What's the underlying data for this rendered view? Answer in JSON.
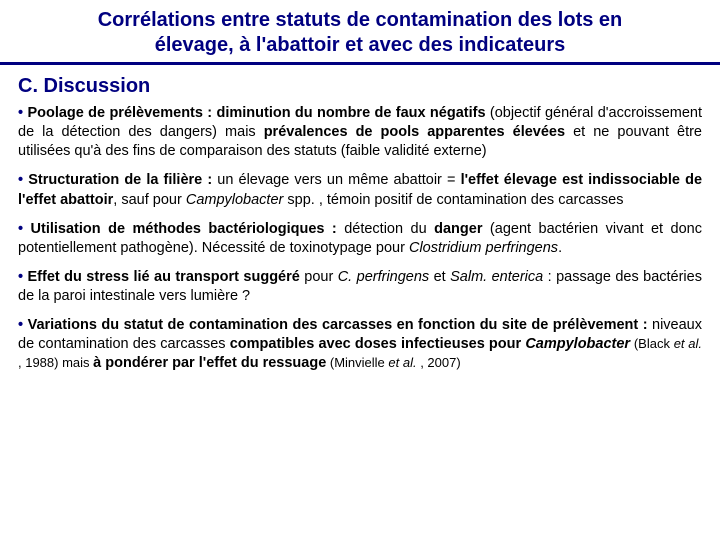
{
  "colors": {
    "primary": "#000080",
    "text": "#000000",
    "background": "#ffffff",
    "title_underline": "#000080"
  },
  "typography": {
    "title_fontsize": 20,
    "heading_fontsize": 20,
    "body_fontsize": 14.5,
    "font_family": "Arial"
  },
  "title": {
    "line1": "Corrélations entre statuts de contamination des lots en",
    "line2": "élevage, à l'abattoir et avec des indicateurs"
  },
  "section": "C. Discussion",
  "bullets": [
    {
      "lead": "Poolage de prélèvements :",
      "b1": " diminution du nombre de faux négatifs",
      "plain1": " (objectif général d'accroissement de la détection des dangers) mais ",
      "b2": "prévalences de pools apparentes élevées",
      "plain2": " et ne pouvant être utilisées qu'à des fins de comparaison des statuts (faible validité externe)"
    },
    {
      "lead": "Structuration de la filière :",
      "plain1": " un élevage vers un même abattoir = ",
      "b1": "l'effet élevage est indissociable de l'effet abattoir",
      "plain2": ", sauf pour ",
      "i1": "Campylobacter",
      "plain3": " spp. , témoin positif de contamination des carcasses"
    },
    {
      "lead": "Utilisation de méthodes bactériologiques :",
      "plain1": " détection du ",
      "b1": "danger",
      "plain2": " (agent bactérien vivant et donc potentiellement pathogène). Nécessité de toxinotypage pour ",
      "i1": "Clostridium perfringens",
      "plain3": "."
    },
    {
      "lead": "Effet du stress lié au transport suggéré",
      "plain1": " pour ",
      "i1": "C. perfringens",
      "plain2": " et ",
      "i2": "Salm. enterica",
      "plain3": " : passage des bactéries de la paroi intestinale vers lumière ?"
    },
    {
      "lead": "Variations du statut de contamination des carcasses en fonction du site de prélèvement :",
      "plain1": " niveaux de contamination des carcasses ",
      "b1": "compatibles avec doses infectieuses pour ",
      "bi1": "Campylobacter",
      "plain2": " (Black ",
      "i1": "et al.",
      "plain3": " , 1988) mais ",
      "b2": "à pondérer par l'effet du ressuage",
      "plain4": " (Minvielle ",
      "i2": "et al.",
      "plain5": " , 2007)"
    }
  ]
}
